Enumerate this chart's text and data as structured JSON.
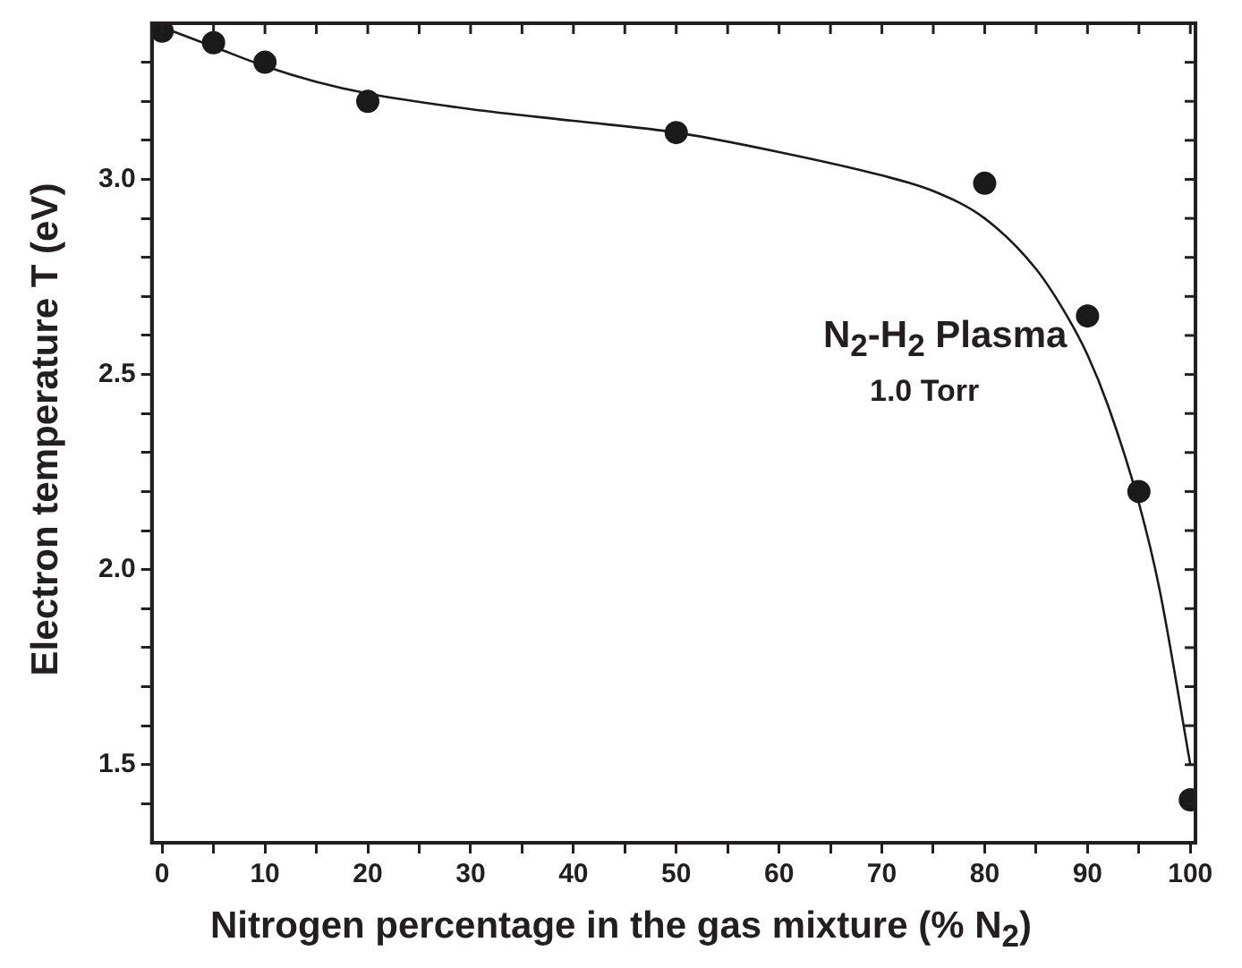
{
  "chart_data": {
    "type": "scatter",
    "xlabel": "Nitrogen percentage in the gas mixture (% N$_{2}$)",
    "ylabel": "Electron temperature T (eV)",
    "annotations": [
      "N$_{2}$-H$_{2}$ Plasma",
      "1.0 Torr"
    ],
    "xlim": [
      -1,
      100.5
    ],
    "xticks": [
      0,
      {
        "value": 5,
        "label": null
      },
      10,
      {
        "value": 15,
        "label": null
      },
      20,
      {
        "value": 25,
        "label": null
      },
      30,
      {
        "value": 35,
        "label": null
      },
      40,
      {
        "value": 45,
        "label": null
      },
      50,
      {
        "value": 55,
        "label": null
      },
      60,
      {
        "value": 65,
        "label": null
      },
      70,
      {
        "value": 75,
        "label": null
      },
      80,
      {
        "value": 85,
        "label": null
      },
      90,
      {
        "value": 95,
        "label": null
      },
      100
    ],
    "ylim": [
      1.3,
      3.4
    ],
    "yticks": [
      {
        "value": 1.4,
        "label": null
      },
      "1.5",
      {
        "value": 1.6,
        "label": null
      },
      {
        "value": 1.7,
        "label": null
      },
      {
        "value": 1.8,
        "label": null
      },
      {
        "value": 1.9,
        "label": null
      },
      {
        "value": 2.0,
        "label": "2.0"
      },
      {
        "value": 2.1,
        "label": null
      },
      {
        "value": 2.2,
        "label": null
      },
      {
        "value": 2.3,
        "label": null
      },
      {
        "value": 2.4,
        "label": null
      },
      2.5,
      {
        "value": 2.6,
        "label": null
      },
      {
        "value": 2.7,
        "label": null
      },
      {
        "value": 2.8,
        "label": null
      },
      {
        "value": 2.9,
        "label": null
      },
      {
        "value": 3.0,
        "label": "3.0"
      },
      {
        "value": 3.1,
        "label": null
      },
      {
        "value": 3.2,
        "label": null
      },
      {
        "value": 3.3,
        "label": null
      }
    ],
    "grid": false,
    "legend": false,
    "series": [
      {
        "type": "scatter",
        "color": "#1a1a1a",
        "marker": "circle",
        "x": [
          0,
          5,
          10,
          20,
          50,
          80,
          90,
          95,
          100
        ],
        "values": [
          3.38,
          3.35,
          3.3,
          3.2,
          3.12,
          2.99,
          2.65,
          2.2,
          1.41
        ]
      },
      {
        "type": "line",
        "color": "#1a1a1a",
        "marker": "none",
        "line_style": "solid",
        "x": [
          0,
          5,
          10,
          15,
          20,
          30,
          40,
          50,
          60,
          70,
          75,
          80,
          85,
          88,
          90,
          92,
          95,
          97,
          100
        ],
        "values": [
          3.39,
          3.34,
          3.29,
          3.25,
          3.22,
          3.18,
          3.15,
          3.12,
          3.07,
          3.01,
          2.97,
          2.9,
          2.77,
          2.65,
          2.55,
          2.42,
          2.17,
          1.95,
          1.5
        ]
      }
    ]
  }
}
